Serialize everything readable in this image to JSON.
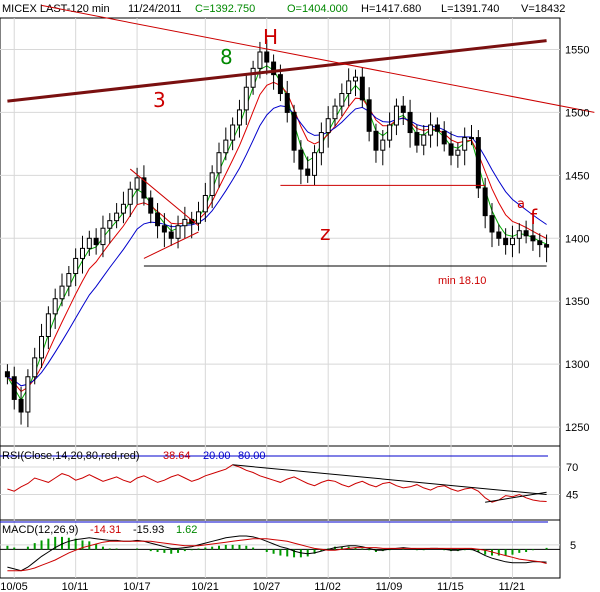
{
  "header": {
    "symbol_interval": "MICEX LAST-120 min",
    "date": "11/24/2011",
    "close": "C=1392.750",
    "open": "O=1404.000",
    "high": "H=1417.680",
    "low": "L=1391.740",
    "volume": "V=18432"
  },
  "annotations": {
    "eight": "8",
    "h": "H",
    "three": "3",
    "z": "z",
    "a": "a",
    "f": "f",
    "min_label": "min 18.10"
  },
  "colors": {
    "candles": "#000000",
    "ma_fast": "#00aa00",
    "ma_mid": "#dd0000",
    "ma_slow": "#0000cc",
    "trend_red": "#cc0000",
    "trend_brown": "#7a1010",
    "rsi_line": "#cc0000",
    "macd_line": "#000000",
    "signal_line": "#cc0000",
    "histogram": "#009900"
  },
  "chart_data": [
    {
      "type": "candlestick",
      "title": "MICEX LAST-120 min",
      "ylim": [
        1235,
        1575
      ],
      "y_ticks": [
        "1550",
        "1500",
        "1450",
        "1400",
        "1350",
        "1300",
        "1250"
      ],
      "x_ticks": [
        "10/05",
        "10/11",
        "10/17",
        "10/21",
        "10/27",
        "11/02",
        "11/09",
        "11/15",
        "11/21"
      ],
      "grid": true,
      "closes": [
        1290,
        1272,
        1262,
        1290,
        1305,
        1322,
        1340,
        1352,
        1362,
        1372,
        1384,
        1392,
        1400,
        1395,
        1408,
        1414,
        1420,
        1427,
        1439,
        1448,
        1432,
        1420,
        1410,
        1405,
        1400,
        1410,
        1415,
        1412,
        1421,
        1434,
        1452,
        1468,
        1478,
        1490,
        1502,
        1520,
        1535,
        1548,
        1540,
        1530,
        1515,
        1500,
        1470,
        1455,
        1450,
        1468,
        1484,
        1495,
        1505,
        1515,
        1525,
        1528,
        1510,
        1485,
        1470,
        1478,
        1490,
        1505,
        1500,
        1484,
        1474,
        1482,
        1490,
        1485,
        1475,
        1466,
        1470,
        1480,
        1480,
        1440,
        1418,
        1405,
        1400,
        1395,
        1400,
        1406,
        1402,
        1398,
        1395,
        1393
      ],
      "overlay_series": [
        {
          "style": "fast moving average"
        },
        {
          "style": "medium moving average"
        },
        {
          "style": "slow moving average"
        }
      ],
      "horizontal_levels": [
        1442,
        1378
      ],
      "trend_lines": [
        {
          "from": [
            0,
            1509
          ],
          "to": [
            79,
            1557
          ]
        },
        {
          "from": [
            5,
            1585
          ],
          "to": [
            86,
            1500
          ]
        }
      ]
    },
    {
      "type": "line",
      "title": "RSI(Close,14,20,80,red,red)",
      "legend": [
        "38.64",
        "20.00",
        "80.00"
      ],
      "ylim": [
        20,
        80
      ],
      "y_ticks": [
        "70",
        "45"
      ],
      "levels": [
        80,
        20
      ],
      "values": [
        50,
        48,
        52,
        55,
        60,
        58,
        56,
        60,
        64,
        62,
        58,
        60,
        63,
        60,
        57,
        59,
        61,
        58,
        56,
        60,
        62,
        59,
        56,
        58,
        61,
        63,
        60,
        57,
        59,
        62,
        64,
        66,
        68,
        72,
        70,
        67,
        65,
        62,
        60,
        58,
        56,
        59,
        61,
        58,
        55,
        53,
        56,
        58,
        57,
        54,
        52,
        55,
        57,
        54,
        52,
        55,
        56,
        53,
        51,
        52,
        54,
        51,
        49,
        52,
        53,
        50,
        48,
        50,
        51,
        48,
        42,
        38,
        40,
        44,
        43,
        45,
        42,
        40,
        39,
        38.64
      ]
    },
    {
      "type": "line",
      "title": "MACD(12,26,9)",
      "legend": [
        "-14.31",
        "-15.93",
        "1.62"
      ],
      "ylim": [
        -30,
        15
      ],
      "y_ticks": [
        "5"
      ],
      "macd": [
        -20,
        -22,
        -24,
        -20,
        -14,
        -8,
        -3,
        2,
        6,
        9,
        11,
        12,
        13,
        12,
        11,
        10,
        10,
        9,
        9,
        10,
        9,
        7,
        5,
        3,
        1,
        1,
        2,
        3,
        5,
        7,
        9,
        11,
        13,
        14,
        15,
        15,
        14,
        12,
        9,
        6,
        3,
        1,
        -2,
        -4,
        -5,
        -4,
        -2,
        0,
        2,
        3,
        4,
        4,
        3,
        1,
        -1,
        -1,
        0,
        1,
        2,
        1,
        0,
        0,
        1,
        1,
        0,
        -1,
        -1,
        0,
        0,
        -3,
        -7,
        -10,
        -12,
        -14,
        -15,
        -15,
        -15,
        -14,
        -14,
        -14.31
      ],
      "signal": [
        -24,
        -24,
        -24,
        -23,
        -21,
        -18,
        -15,
        -12,
        -8,
        -4,
        -1,
        2,
        4,
        6,
        8,
        9,
        9,
        9,
        9,
        9,
        9,
        9,
        8,
        7,
        6,
        5,
        4,
        4,
        4,
        5,
        6,
        7,
        8,
        9,
        10,
        11,
        12,
        12,
        12,
        11,
        10,
        9,
        7,
        5,
        3,
        1,
        0,
        -1,
        -1,
        0,
        1,
        2,
        2,
        2,
        2,
        1,
        1,
        1,
        1,
        1,
        1,
        1,
        1,
        1,
        1,
        1,
        1,
        1,
        1,
        0,
        -1,
        -3,
        -5,
        -7,
        -9,
        -11,
        -12,
        -13,
        -14,
        -15.93
      ]
    }
  ]
}
